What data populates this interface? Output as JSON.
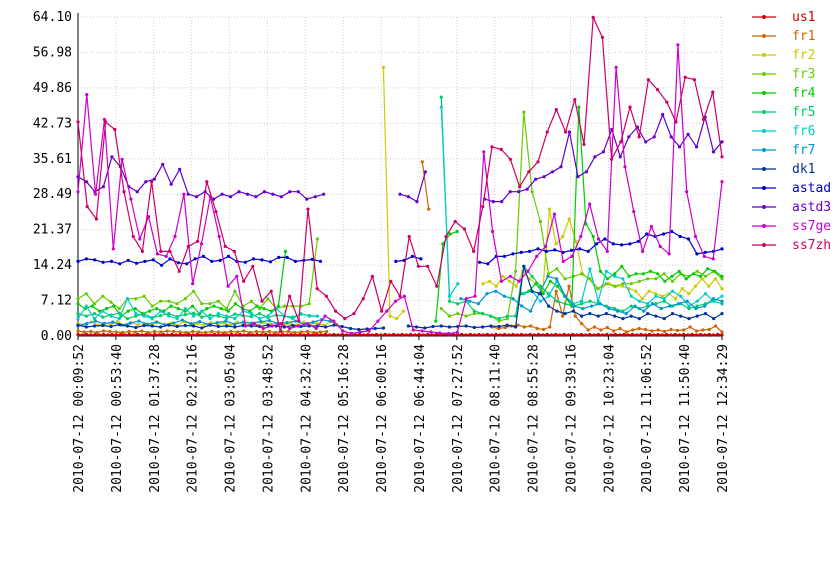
{
  "chart_data": {
    "type": "line",
    "title": "",
    "xlabel": "",
    "ylabel": "",
    "ylim": [
      0,
      64.1
    ],
    "y_ticks": [
      "0.00",
      "7.12",
      "14.24",
      "21.37",
      "28.49",
      "35.61",
      "42.73",
      "49.86",
      "56.98",
      "64.10"
    ],
    "x_ticks": [
      "2010-07-12 00:09:52",
      "2010-07-12 00:53:40",
      "2010-07-12 01:37:28",
      "2010-07-12 02:21:16",
      "2010-07-12 03:05:04",
      "2010-07-12 03:48:52",
      "2010-07-12 04:32:40",
      "2010-07-12 05:16:28",
      "2010-07-12 06:00:16",
      "2010-07-12 06:44:04",
      "2010-07-12 07:27:52",
      "2010-07-12 08:11:40",
      "2010-07-12 08:55:28",
      "2010-07-12 09:39:16",
      "2010-07-12 10:23:04",
      "2010-07-12 11:06:52",
      "2010-07-12 11:50:40",
      "2010-07-12 12:34:29"
    ],
    "grid": true,
    "legend_position": "right",
    "series": [
      {
        "name": "us1",
        "color": "#cc0000",
        "values": [
          0.3,
          0.2,
          0.3,
          0.2,
          0.3,
          0.2,
          0.3,
          0.2,
          0.3,
          0.2,
          0.3,
          0.2,
          0.3,
          0.2,
          0.3,
          0.2,
          0.3,
          0.2,
          0.3,
          0.2,
          0.3,
          0.2,
          0.3,
          0.2,
          0.3,
          0.2,
          0.3,
          0.2,
          0.3,
          0.2,
          0.3,
          0.2,
          0.3,
          0.2,
          0.3,
          0.2,
          0.3,
          0.2,
          0.3,
          0.2,
          0.3,
          0.2,
          0.3,
          0.2,
          0.3,
          0.2,
          0.3,
          0.2,
          0.3,
          0.2,
          0.3,
          0.2,
          0.3,
          0.2,
          0.3,
          0.2,
          0.3,
          0.2,
          0.3,
          0.2,
          0.3,
          0.2,
          0.3,
          0.2,
          0.3,
          0.2,
          0.3,
          0.2,
          0.3,
          0.2,
          0.3,
          0.2,
          0.3,
          0.2,
          0.3,
          0.2,
          0.3,
          0.2,
          0.3,
          0.2,
          0.3,
          0.2,
          0.3,
          0.2,
          0.3,
          0.2,
          0.3,
          0.2,
          0.3,
          0.2,
          0.3,
          0.2,
          0.3,
          0.2,
          0.3,
          0.2,
          0.3,
          0.2,
          0.3,
          0.2,
          0.3,
          0.2,
          0.3,
          0.2,
          0.3,
          0.2,
          0.3,
          0.2,
          0.3,
          0.2,
          0.3,
          0.2,
          0.3,
          0.2,
          0.3,
          0.2,
          0.3,
          0.2,
          0.3,
          0.2,
          0.3,
          0.2,
          0.3,
          0.2,
          0.3,
          0.2,
          0.3,
          0.2,
          0.3,
          0.2,
          0.3,
          0.2,
          0.3,
          0.2,
          0.3,
          0.2,
          0.3,
          0.2,
          0.3,
          0.2,
          0.3,
          0.2,
          0.3,
          0.2,
          0.3,
          0.2,
          0.3,
          0.2,
          0.3,
          0.2,
          0.3,
          0.2
        ]
      },
      {
        "name": "fr1",
        "color": "#cc6600",
        "values": [
          1.0,
          0.8,
          0.9,
          0.7,
          1.0,
          0.9,
          0.8,
          0.7,
          0.9,
          0.8,
          1.0,
          0.7,
          0.9,
          0.8,
          1.0,
          0.9,
          0.8,
          0.7,
          0.9,
          0.8,
          0.7,
          0.9,
          0.8,
          0.7,
          0.9,
          0.8,
          1.0,
          0.7,
          0.9,
          0.8,
          0.9,
          0.7,
          0.8,
          0.9,
          0.7,
          0.8,
          0.9,
          0.7,
          0.8,
          0.9,
          null,
          null,
          null,
          null,
          null,
          null,
          null,
          null,
          null,
          null,
          null,
          null,
          null,
          null,
          35.0,
          25.5,
          null,
          null,
          null,
          null,
          null,
          null,
          null,
          null,
          null,
          1.8,
          1.5,
          1.7,
          2.0,
          2.2,
          1.8,
          2.0,
          1.5,
          1.3,
          1.8,
          9.0,
          4.0,
          10.0,
          4.0,
          2.5,
          1.2,
          1.8,
          1.2,
          1.7,
          1.0,
          1.5,
          0.8,
          1.2,
          1.5,
          1.3,
          1.0,
          1.2,
          0.9,
          1.3,
          1.1,
          1.2,
          1.8,
          1.0,
          1.2,
          1.3,
          2.0,
          0.8
        ]
      },
      {
        "name": "fr2",
        "color": "#cccc00",
        "values": [
          2.5,
          2.3,
          2.8,
          2.2,
          2.6,
          2.4,
          2.9,
          2.1,
          2.7,
          2.3,
          2.5,
          2.2,
          2.8,
          2.4,
          2.6,
          2.1,
          2.9,
          2.3,
          2.5,
          2.2,
          2.7,
          2.4,
          2.6,
          2.1,
          2.8,
          2.3,
          2.5,
          2.2,
          2.7,
          2.4,
          2.6,
          2.3,
          2.5,
          2.2,
          2.8,
          2.4,
          2.6,
          2.1,
          2.9,
          2.3,
          null,
          null,
          null,
          null,
          null,
          null,
          54.0,
          4.0,
          3.5,
          5.0,
          null,
          null,
          null,
          null,
          null,
          null,
          null,
          null,
          null,
          null,
          null,
          10.5,
          11.0,
          10.0,
          12.0,
          11.0,
          10.0,
          13.0,
          11.5,
          10.5,
          9.0,
          25.5,
          18.5,
          20.0,
          23.5,
          19.0,
          12.5,
          11.5,
          9.5,
          10.0,
          10.5,
          10.0,
          10.0,
          9.5,
          9.0,
          7.5,
          9.0,
          8.5,
          8.0,
          8.5,
          7.5,
          9.5,
          8.5,
          10.0,
          11.5,
          10.0,
          11.5,
          9.5
        ]
      },
      {
        "name": "fr3",
        "color": "#66cc00",
        "values": [
          7.5,
          8.5,
          6.5,
          8.0,
          6.8,
          5.5,
          7.5,
          7.5,
          8.0,
          6.0,
          7.0,
          7.0,
          6.5,
          7.5,
          9.0,
          6.5,
          6.5,
          7.0,
          5.5,
          9.0,
          6.0,
          7.0,
          5.5,
          7.5,
          5.5,
          6.0,
          6.0,
          6.0,
          6.5,
          19.5,
          null,
          null,
          null,
          null,
          null,
          null,
          null,
          null,
          null,
          null,
          null,
          null,
          null,
          null,
          5.5,
          4.0,
          4.5,
          4.0,
          4.5,
          4.5,
          4.0,
          3.0,
          3.5,
          13.0,
          45.0,
          29.0,
          23.0,
          12.5,
          13.5,
          11.5,
          12.0,
          12.5,
          11.5,
          9.5,
          10.5,
          10.0,
          10.5,
          10.5,
          11.0,
          11.5,
          11.5,
          12.5,
          11.0,
          12.5,
          12.0,
          13.0,
          12.0,
          13.0,
          11.5
        ]
      },
      {
        "name": "fr4",
        "color": "#00cc00",
        "values": [
          6.5,
          5.5,
          6.0,
          5.0,
          5.5,
          6.0,
          4.0,
          5.0,
          5.5,
          4.5,
          5.0,
          5.5,
          5.0,
          6.0,
          5.5,
          5.0,
          6.0,
          4.5,
          5.5,
          6.0,
          5.5,
          5.0,
          6.5,
          5.5,
          5.0,
          6.0,
          5.5,
          5.0,
          6.0,
          17.0,
          null,
          null,
          null,
          null,
          null,
          null,
          null,
          null,
          null,
          null,
          null,
          null,
          null,
          null,
          null,
          null,
          null,
          null,
          null,
          null,
          3.0,
          18.5,
          20.5,
          21.0,
          null,
          null,
          null,
          null,
          null,
          null,
          null,
          null,
          8.5,
          9.0,
          10.5,
          8.5,
          11.0,
          10.0,
          8.0,
          6.0,
          46.0,
          22.5,
          20.0,
          13.0,
          11.5,
          12.5,
          14.0,
          12.0,
          12.5,
          12.5,
          13.0,
          12.5,
          11.0,
          12.0,
          13.0,
          11.5,
          12.5,
          12.0,
          13.5,
          13.0,
          12.0
        ]
      },
      {
        "name": "fr5",
        "color": "#00cc66",
        "values": [
          4.5,
          4.0,
          4.5,
          3.8,
          4.2,
          4.6,
          3.5,
          4.0,
          4.4,
          3.7,
          4.1,
          4.5,
          3.9,
          4.3,
          4.6,
          3.8,
          4.2,
          4.0,
          3.6,
          4.4,
          4.1,
          3.9,
          4.5,
          3.7,
          4.2,
          4.0,
          3.8,
          4.4,
          4.1,
          4.0,
          null,
          null,
          null,
          null,
          null,
          null,
          null,
          null,
          null,
          null,
          null,
          null,
          null,
          null,
          48.0,
          7.0,
          6.5,
          7.0,
          5.0,
          4.5,
          4.0,
          3.5,
          4.0,
          4.0,
          14.0,
          12.0,
          10.0,
          8.5,
          7.0,
          6.5,
          6.0,
          6.5,
          7.0,
          6.5,
          6.0,
          5.5,
          5.0,
          6.0,
          5.5,
          6.0,
          6.5,
          7.0,
          6.0,
          6.5,
          5.5,
          6.0,
          6.5,
          7.0,
          6.5
        ]
      },
      {
        "name": "fr6",
        "color": "#00cccc",
        "values": [
          3.5,
          6.0,
          3.5,
          5.0,
          4.0,
          3.5,
          7.5,
          4.5,
          4.0,
          3.5,
          5.0,
          4.0,
          3.5,
          5.5,
          4.0,
          5.0,
          3.5,
          4.5,
          4.0,
          3.5,
          5.0,
          4.5,
          3.5,
          4.0,
          5.5,
          4.0,
          3.5,
          4.5,
          4.0,
          4.0,
          null,
          null,
          null,
          null,
          null,
          null,
          null,
          null,
          null,
          null,
          null,
          null,
          null,
          null,
          46.0,
          8.0,
          10.5,
          null,
          null,
          null,
          null,
          null,
          null,
          null,
          8.5,
          9.0,
          7.0,
          8.0,
          11.0,
          8.0,
          6.5,
          7.0,
          13.5,
          7.0,
          13.0,
          12.0,
          11.5,
          8.0,
          7.0,
          6.5,
          8.0,
          7.5,
          9.0,
          8.0,
          6.0,
          7.0,
          8.5,
          7.0,
          8.0
        ]
      },
      {
        "name": "fr7",
        "color": "#0099cc",
        "values": [
          2.0,
          2.5,
          3.0,
          2.5,
          2.8,
          2.2,
          2.6,
          3.0,
          2.4,
          2.8,
          2.2,
          2.6,
          3.2,
          2.5,
          2.9,
          2.3,
          2.7,
          3.0,
          2.4,
          2.8,
          2.6,
          2.9,
          3.1,
          2.5,
          2.7,
          3.0,
          2.4,
          2.8,
          3.3,
          3.0,
          null,
          null,
          null,
          null,
          null,
          null,
          null,
          null,
          null,
          null,
          null,
          null,
          null,
          null,
          7.5,
          7.0,
          6.5,
          8.5,
          9.0,
          8.0,
          7.5,
          6.0,
          5.0,
          8.5,
          12.0,
          11.5,
          8.0,
          6.0,
          5.5,
          6.0,
          6.5,
          5.5,
          5.0,
          4.5,
          6.0,
          5.0,
          6.5,
          5.5,
          6.0,
          6.5,
          7.0,
          5.5,
          6.0,
          7.5,
          7.0
        ]
      },
      {
        "name": "dk1",
        "color": "#003399",
        "values": [
          2.2,
          1.8,
          2.0,
          2.1,
          1.9,
          2.3,
          2.0,
          1.7,
          2.1,
          2.0,
          1.8,
          2.2,
          1.9,
          2.1,
          2.0,
          1.6,
          2.2,
          1.9,
          2.0,
          1.8,
          2.1,
          2.0,
          1.9,
          2.2,
          2.0,
          1.8,
          2.1,
          1.9,
          2.0,
          2.0,
          1.8,
          2.2,
          1.9,
          1.5,
          1.3,
          1.4,
          1.5,
          1.6,
          null,
          null,
          2.0,
          1.8,
          1.6,
          1.9,
          2.0,
          1.8,
          1.9,
          2.0,
          1.7,
          1.8,
          2.0,
          1.9,
          2.2,
          1.8,
          14.0,
          9.0,
          8.5,
          6.0,
          5.0,
          4.5,
          5.0,
          4.0,
          4.5,
          4.0,
          4.5,
          4.0,
          3.5,
          4.0,
          3.5,
          4.5,
          4.0,
          3.5,
          4.5,
          4.0,
          3.5,
          4.0,
          4.5,
          3.5,
          4.5
        ]
      },
      {
        "name": "astad",
        "color": "#0000cc",
        "values": [
          15.0,
          15.5,
          15.3,
          14.8,
          15.0,
          14.5,
          15.2,
          14.6,
          15.0,
          15.3,
          14.2,
          15.5,
          14.7,
          14.5,
          15.5,
          16.0,
          15.0,
          15.2,
          16.0,
          15.0,
          14.8,
          15.5,
          15.3,
          14.9,
          15.8,
          15.8,
          15.0,
          15.2,
          15.4,
          15.0,
          null,
          null,
          null,
          null,
          null,
          null,
          null,
          null,
          15.0,
          15.2,
          16.0,
          15.5,
          null,
          null,
          null,
          null,
          null,
          null,
          14.8,
          14.5,
          16.0,
          16.0,
          16.5,
          16.8,
          17.0,
          17.5,
          17.0,
          17.3,
          16.8,
          17.2,
          17.5,
          17.0,
          18.5,
          19.5,
          18.5,
          18.3,
          18.5,
          19.0,
          20.5,
          20.0,
          20.5,
          21.0,
          20.0,
          19.5,
          16.5,
          16.8,
          17.0,
          17.5
        ]
      },
      {
        "name": "astd3",
        "color": "#6600cc",
        "values": [
          32.0,
          31.0,
          29.0,
          30.0,
          36.0,
          34.0,
          30.0,
          29.0,
          31.0,
          31.5,
          34.5,
          30.5,
          33.5,
          28.5,
          28.0,
          29.0,
          27.5,
          28.5,
          28.0,
          29.0,
          28.5,
          28.0,
          29.0,
          28.5,
          28.0,
          29.0,
          29.0,
          27.5,
          28.0,
          28.5,
          null,
          null,
          null,
          null,
          null,
          null,
          null,
          null,
          28.5,
          28.0,
          27.0,
          33.0,
          null,
          null,
          null,
          null,
          null,
          null,
          27.5,
          27.0,
          27.0,
          29.0,
          29.0,
          29.5,
          31.5,
          32.0,
          33.0,
          34.0,
          41.0,
          32.0,
          33.0,
          36.0,
          37.0,
          41.5,
          36.0,
          40.0,
          42.0,
          39.0,
          40.0,
          44.5,
          40.0,
          38.0,
          40.5,
          38.0,
          44.0,
          37.0,
          39.0
        ]
      },
      {
        "name": "ss7ge",
        "color": "#cc00cc",
        "values": [
          29.0,
          48.5,
          28.5,
          43.5,
          17.5,
          35.5,
          27.5,
          19.5,
          24.0,
          16.5,
          16.0,
          20.0,
          28.5,
          10.5,
          18.5,
          28.0,
          20.0,
          10.0,
          12.0,
          2.0,
          2.5,
          1.5,
          2.0,
          2.5,
          1.5,
          2.0,
          2.5,
          1.5,
          4.0,
          3.0,
          1.0,
          0.5,
          0.8,
          1.0,
          3.0,
          5.0,
          7.0,
          8.0,
          1.2,
          1.0,
          0.8,
          0.6,
          0.5,
          0.7,
          7.5,
          8.0,
          37.0,
          21.0,
          11.0,
          12.0,
          11.0,
          13.0,
          16.0,
          18.0,
          24.5,
          15.0,
          16.0,
          20.0,
          26.5,
          19.5,
          17.0,
          54.0,
          34.0,
          25.0,
          17.0,
          22.0,
          18.0,
          16.5,
          58.5,
          29.0,
          20.0,
          16.0,
          15.5,
          31.0
        ]
      },
      {
        "name": "ss7zh",
        "color": "#cc0066",
        "values": [
          43.0,
          26.0,
          23.5,
          43.0,
          41.5,
          29.0,
          20.0,
          17.0,
          31.0,
          17.0,
          17.0,
          13.0,
          18.0,
          19.0,
          31.0,
          25.0,
          18.0,
          17.0,
          11.0,
          14.0,
          7.0,
          9.0,
          1.0,
          8.0,
          3.0,
          25.5,
          9.5,
          8.0,
          5.0,
          3.5,
          4.5,
          7.5,
          12.0,
          5.0,
          11.0,
          8.0,
          20.0,
          14.0,
          14.0,
          10.0,
          20.0,
          23.0,
          21.5,
          17.0,
          26.0,
          38.0,
          37.5,
          35.5,
          30.0,
          33.0,
          35.0,
          41.0,
          45.5,
          41.0,
          47.5,
          38.5,
          64.0,
          60.0,
          35.5,
          39.0,
          46.0,
          40.0,
          51.5,
          49.5,
          47.0,
          43.0,
          52.0,
          51.5,
          43.5,
          49.0,
          36.0
        ]
      }
    ]
  }
}
